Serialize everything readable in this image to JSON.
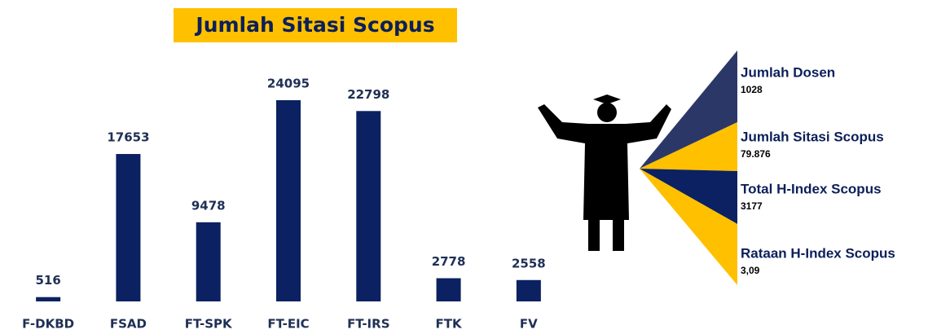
{
  "chart_data": {
    "type": "bar",
    "title": "Jumlah Sitasi Scopus",
    "categories": [
      "F-DKBD",
      "FSAD",
      "FT-SPK",
      "FT-EIC",
      "FT-IRS",
      "FTK",
      "FV"
    ],
    "values": [
      516,
      17653,
      9478,
      24095,
      22798,
      2778,
      2558
    ],
    "color": "#0b2161",
    "title_background": "#ffc000"
  },
  "summary": [
    {
      "label": "Jumlah Dosen",
      "value": 1028
    },
    {
      "label": "Jumlah Sitasi Scopus",
      "value": "79.876"
    },
    {
      "label": "Total H-Index Scopus",
      "value": 3177
    },
    {
      "label": "Rataan H-Index Scopus",
      "value": "3,09"
    }
  ]
}
